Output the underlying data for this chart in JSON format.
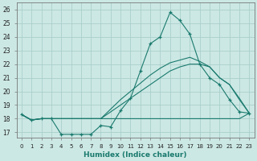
{
  "xlabel": "Humidex (Indice chaleur)",
  "background_color": "#cce8e4",
  "grid_color": "#aacfcb",
  "line_color": "#1a7a6e",
  "xlim": [
    -0.5,
    23.5
  ],
  "ylim": [
    16.6,
    26.5
  ],
  "yticks": [
    17,
    18,
    19,
    20,
    21,
    22,
    23,
    24,
    25,
    26
  ],
  "xticks": [
    0,
    1,
    2,
    3,
    4,
    5,
    6,
    7,
    8,
    9,
    10,
    11,
    12,
    13,
    14,
    15,
    16,
    17,
    18,
    19,
    20,
    21,
    22,
    23
  ],
  "series": [
    {
      "y": [
        18.3,
        17.9,
        18.0,
        18.0,
        16.85,
        16.85,
        16.85,
        16.85,
        17.5,
        17.4,
        18.6,
        19.5,
        21.5,
        23.5,
        24.0,
        25.8,
        25.2,
        24.2,
        22.0,
        21.0,
        20.5,
        19.4,
        18.5,
        18.4
      ],
      "marker": true
    },
    {
      "y": [
        18.3,
        17.9,
        18.0,
        18.0,
        18.0,
        18.0,
        18.0,
        18.0,
        18.0,
        18.0,
        18.0,
        18.0,
        18.0,
        18.0,
        18.0,
        18.0,
        18.0,
        18.0,
        18.0,
        18.0,
        18.0,
        18.0,
        18.0,
        18.4
      ],
      "marker": false
    },
    {
      "y": [
        18.3,
        17.9,
        18.0,
        18.0,
        18.0,
        18.0,
        18.0,
        18.0,
        18.0,
        18.5,
        19.0,
        19.5,
        20.0,
        20.5,
        21.0,
        21.5,
        21.8,
        22.0,
        22.0,
        21.8,
        21.0,
        20.5,
        19.5,
        18.4
      ],
      "marker": false
    },
    {
      "y": [
        18.3,
        17.9,
        18.0,
        18.0,
        18.0,
        18.0,
        18.0,
        18.0,
        18.0,
        18.7,
        19.4,
        20.0,
        20.6,
        21.2,
        21.7,
        22.1,
        22.3,
        22.5,
        22.2,
        21.8,
        21.0,
        20.5,
        19.4,
        18.4
      ],
      "marker": false
    }
  ]
}
